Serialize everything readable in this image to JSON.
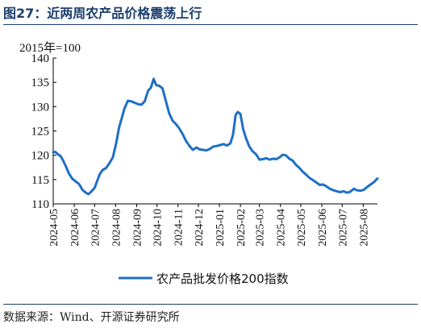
{
  "figure": {
    "title": "图27：近两周农产品价格震荡上行",
    "source": "数据来源：Wind、开源证券研究所"
  },
  "chart_data": {
    "type": "line",
    "unit_label": "2015年=100",
    "ylim": [
      110,
      140
    ],
    "yticks": [
      110,
      115,
      120,
      125,
      130,
      135,
      140
    ],
    "x_tick_labels": [
      "2024-05",
      "2024-06",
      "2024-07",
      "2024-08",
      "2024-09",
      "2024-10",
      "2024-11",
      "2024-12",
      "2025-01",
      "2025-02",
      "2025-03",
      "2025-04",
      "2025-05",
      "2025-06",
      "2025-07",
      "2025-08"
    ],
    "xlim": [
      "2024-05-01",
      "2025-08-22"
    ],
    "legend_position": "bottom-center",
    "grid": false,
    "series": [
      {
        "name": "农产品批发价格200指数",
        "color": "#1f6fc5",
        "points": [
          [
            "2024-05-01",
            120.6
          ],
          [
            "2024-05-04",
            120.7
          ],
          [
            "2024-05-08",
            120.2
          ],
          [
            "2024-05-12",
            119.8
          ],
          [
            "2024-05-16",
            118.8
          ],
          [
            "2024-05-20",
            117.6
          ],
          [
            "2024-05-24",
            116.3
          ],
          [
            "2024-05-29",
            115.2
          ],
          [
            "2024-06-03",
            114.6
          ],
          [
            "2024-06-08",
            114.1
          ],
          [
            "2024-06-13",
            112.9
          ],
          [
            "2024-06-18",
            112.3
          ],
          [
            "2024-06-22",
            112.0
          ],
          [
            "2024-06-26",
            112.5
          ],
          [
            "2024-07-01",
            113.3
          ],
          [
            "2024-07-05",
            114.8
          ],
          [
            "2024-07-09",
            116.2
          ],
          [
            "2024-07-13",
            117.0
          ],
          [
            "2024-07-18",
            117.4
          ],
          [
            "2024-07-23",
            118.4
          ],
          [
            "2024-07-28",
            119.6
          ],
          [
            "2024-08-02",
            122.6
          ],
          [
            "2024-08-06",
            125.7
          ],
          [
            "2024-08-10",
            127.6
          ],
          [
            "2024-08-14",
            129.6
          ],
          [
            "2024-08-19",
            131.2
          ],
          [
            "2024-08-24",
            131.1
          ],
          [
            "2024-08-29",
            130.8
          ],
          [
            "2024-09-03",
            130.5
          ],
          [
            "2024-09-08",
            130.4
          ],
          [
            "2024-09-13",
            131.1
          ],
          [
            "2024-09-18",
            133.3
          ],
          [
            "2024-09-22",
            133.9
          ],
          [
            "2024-09-26",
            135.7
          ],
          [
            "2024-09-30",
            134.4
          ],
          [
            "2024-10-04",
            134.3
          ],
          [
            "2024-10-09",
            133.8
          ],
          [
            "2024-10-14",
            131.2
          ],
          [
            "2024-10-19",
            128.6
          ],
          [
            "2024-10-24",
            127.1
          ],
          [
            "2024-10-29",
            126.4
          ],
          [
            "2024-11-03",
            125.5
          ],
          [
            "2024-11-08",
            124.3
          ],
          [
            "2024-11-13",
            122.9
          ],
          [
            "2024-11-18",
            121.9
          ],
          [
            "2024-11-23",
            121.1
          ],
          [
            "2024-11-28",
            121.6
          ],
          [
            "2024-12-03",
            121.2
          ],
          [
            "2024-12-08",
            121.1
          ],
          [
            "2024-12-13",
            121.0
          ],
          [
            "2024-12-18",
            121.3
          ],
          [
            "2024-12-23",
            121.8
          ],
          [
            "2024-12-28",
            121.9
          ],
          [
            "2025-01-02",
            122.1
          ],
          [
            "2025-01-07",
            122.3
          ],
          [
            "2025-01-12",
            122.0
          ],
          [
            "2025-01-17",
            122.4
          ],
          [
            "2025-01-21",
            124.2
          ],
          [
            "2025-01-25",
            128.3
          ],
          [
            "2025-01-28",
            128.9
          ],
          [
            "2025-02-01",
            128.5
          ],
          [
            "2025-02-05",
            125.4
          ],
          [
            "2025-02-09",
            123.6
          ],
          [
            "2025-02-14",
            121.8
          ],
          [
            "2025-02-19",
            120.8
          ],
          [
            "2025-02-24",
            120.2
          ],
          [
            "2025-03-01",
            119.1
          ],
          [
            "2025-03-06",
            119.2
          ],
          [
            "2025-03-11",
            119.4
          ],
          [
            "2025-03-16",
            119.1
          ],
          [
            "2025-03-21",
            119.3
          ],
          [
            "2025-03-26",
            119.2
          ],
          [
            "2025-03-31",
            119.6
          ],
          [
            "2025-04-04",
            120.1
          ],
          [
            "2025-04-09",
            120.0
          ],
          [
            "2025-04-14",
            119.3
          ],
          [
            "2025-04-19",
            118.9
          ],
          [
            "2025-04-24",
            118.0
          ],
          [
            "2025-04-29",
            117.4
          ],
          [
            "2025-05-04",
            116.6
          ],
          [
            "2025-05-09",
            116.0
          ],
          [
            "2025-05-14",
            115.3
          ],
          [
            "2025-05-19",
            114.9
          ],
          [
            "2025-05-24",
            114.4
          ],
          [
            "2025-05-29",
            113.9
          ],
          [
            "2025-06-03",
            114.0
          ],
          [
            "2025-06-08",
            113.6
          ],
          [
            "2025-06-13",
            113.1
          ],
          [
            "2025-06-18",
            112.8
          ],
          [
            "2025-06-23",
            112.6
          ],
          [
            "2025-06-28",
            112.4
          ],
          [
            "2025-07-03",
            112.6
          ],
          [
            "2025-07-08",
            112.3
          ],
          [
            "2025-07-13",
            112.5
          ],
          [
            "2025-07-18",
            113.1
          ],
          [
            "2025-07-23",
            112.8
          ],
          [
            "2025-07-28",
            112.7
          ],
          [
            "2025-08-02",
            112.9
          ],
          [
            "2025-08-07",
            113.5
          ],
          [
            "2025-08-12",
            114.0
          ],
          [
            "2025-08-17",
            114.5
          ],
          [
            "2025-08-22",
            115.2
          ]
        ]
      }
    ]
  }
}
